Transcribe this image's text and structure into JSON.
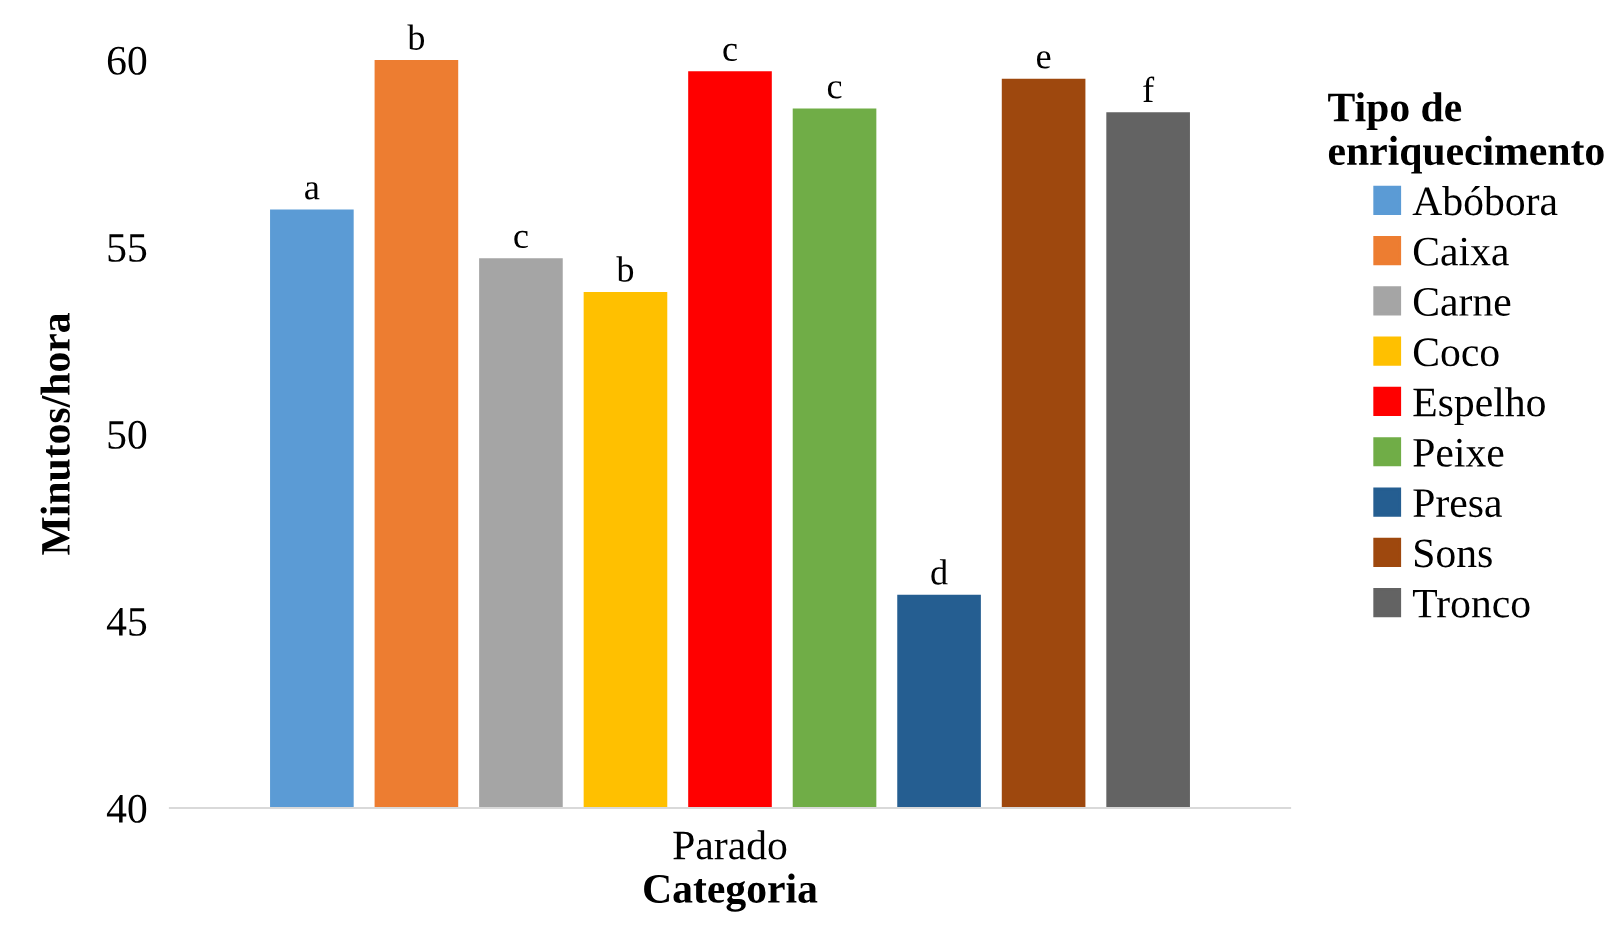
{
  "chart_data": {
    "type": "bar",
    "xlabel": "Categoria",
    "ylabel": "Minutos/hora",
    "legend_title": "Tipo de\nenriquecimento",
    "categories": [
      "Parado"
    ],
    "ylim": [
      40,
      60
    ],
    "yticks": [
      40,
      45,
      50,
      55,
      60
    ],
    "grid": false,
    "legend": "right",
    "series": [
      {
        "name": "Abóbora",
        "color": "#5b9bd5",
        "values": [
          56.0
        ],
        "value_labels": [
          "a"
        ]
      },
      {
        "name": "Caixa",
        "color": "#ed7d31",
        "values": [
          60.0
        ],
        "value_labels": [
          "b"
        ]
      },
      {
        "name": "Carne",
        "color": "#a5a5a5",
        "values": [
          54.7
        ],
        "value_labels": [
          "c"
        ]
      },
      {
        "name": "Coco",
        "color": "#ffc000",
        "values": [
          53.8
        ],
        "value_labels": [
          "b"
        ]
      },
      {
        "name": "Espelho",
        "color": "#ff0000",
        "values": [
          59.7
        ],
        "value_labels": [
          "c"
        ]
      },
      {
        "name": "Peixe",
        "color": "#70ad47",
        "values": [
          58.7
        ],
        "value_labels": [
          "c"
        ]
      },
      {
        "name": "Presa",
        "color": "#255e91",
        "values": [
          45.7
        ],
        "value_labels": [
          "d"
        ]
      },
      {
        "name": "Sons",
        "color": "#9e480e",
        "values": [
          59.5
        ],
        "value_labels": [
          "e"
        ]
      },
      {
        "name": "Tronco",
        "color": "#636363",
        "values": [
          58.6
        ],
        "value_labels": [
          "f"
        ]
      }
    ]
  }
}
